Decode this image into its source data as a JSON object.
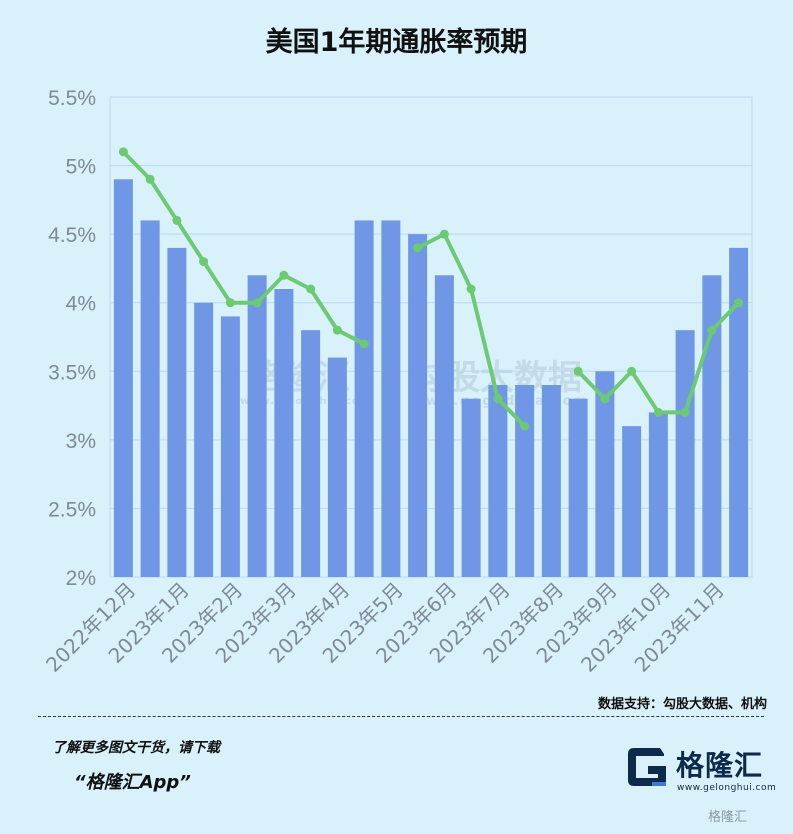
{
  "title": "美国1年期通胀率预期",
  "source": "数据支持：勾股大数据、机构",
  "promo": {
    "line1": "了解更多图文干货，请下载",
    "line2": "“格隆汇App”"
  },
  "logo": {
    "name": "格隆汇",
    "url": "www.gelonghui.com",
    "badge": "格隆汇",
    "colors": {
      "dark": "#0d2a4a",
      "accent": "#3a7bd5"
    }
  },
  "watermarks": {
    "left": "格隆汇",
    "left_url": "www.gelonghui.com",
    "right": "勾股大数据",
    "right_url": "www.gogudata.com"
  },
  "colors": {
    "bar": "#6f97e6",
    "line": "#6ccb72",
    "grid": "#b9d9ea",
    "background": "#d9f1fb"
  },
  "chart_data": {
    "type": "bar",
    "title": "美国1年期通胀率预期",
    "ylim": [
      2,
      5.5
    ],
    "yticks": [
      "2%",
      "2.5%",
      "3%",
      "3.5%",
      "4%",
      "4.5%",
      "5%",
      "5.5%"
    ],
    "ytick_values": [
      2,
      2.5,
      3,
      3.5,
      4,
      4.5,
      5,
      5.5
    ],
    "xtick_labels": [
      "2022年12月",
      "2023年1月",
      "2023年2月",
      "2023年3月",
      "2023年4月",
      "2023年5月",
      "2023年6月",
      "2023年7月",
      "2023年8月",
      "2023年9月",
      "2023年10月",
      "2023年11月"
    ],
    "grid": true,
    "bar_values": [
      4.9,
      4.6,
      4.4,
      4.0,
      3.9,
      4.2,
      4.1,
      3.8,
      3.6,
      4.6,
      4.6,
      4.5,
      4.2,
      3.3,
      3.4,
      3.4,
      3.4,
      3.3,
      3.5,
      3.1,
      3.2,
      3.8,
      4.2,
      4.4
    ],
    "line_values": [
      5.1,
      4.9,
      4.6,
      4.3,
      4.0,
      4.0,
      4.2,
      4.1,
      3.8,
      3.7,
      null,
      4.4,
      4.5,
      4.1,
      3.3,
      3.1,
      null,
      3.5,
      3.3,
      3.5,
      3.2,
      3.2,
      3.8,
      4.0
    ]
  }
}
